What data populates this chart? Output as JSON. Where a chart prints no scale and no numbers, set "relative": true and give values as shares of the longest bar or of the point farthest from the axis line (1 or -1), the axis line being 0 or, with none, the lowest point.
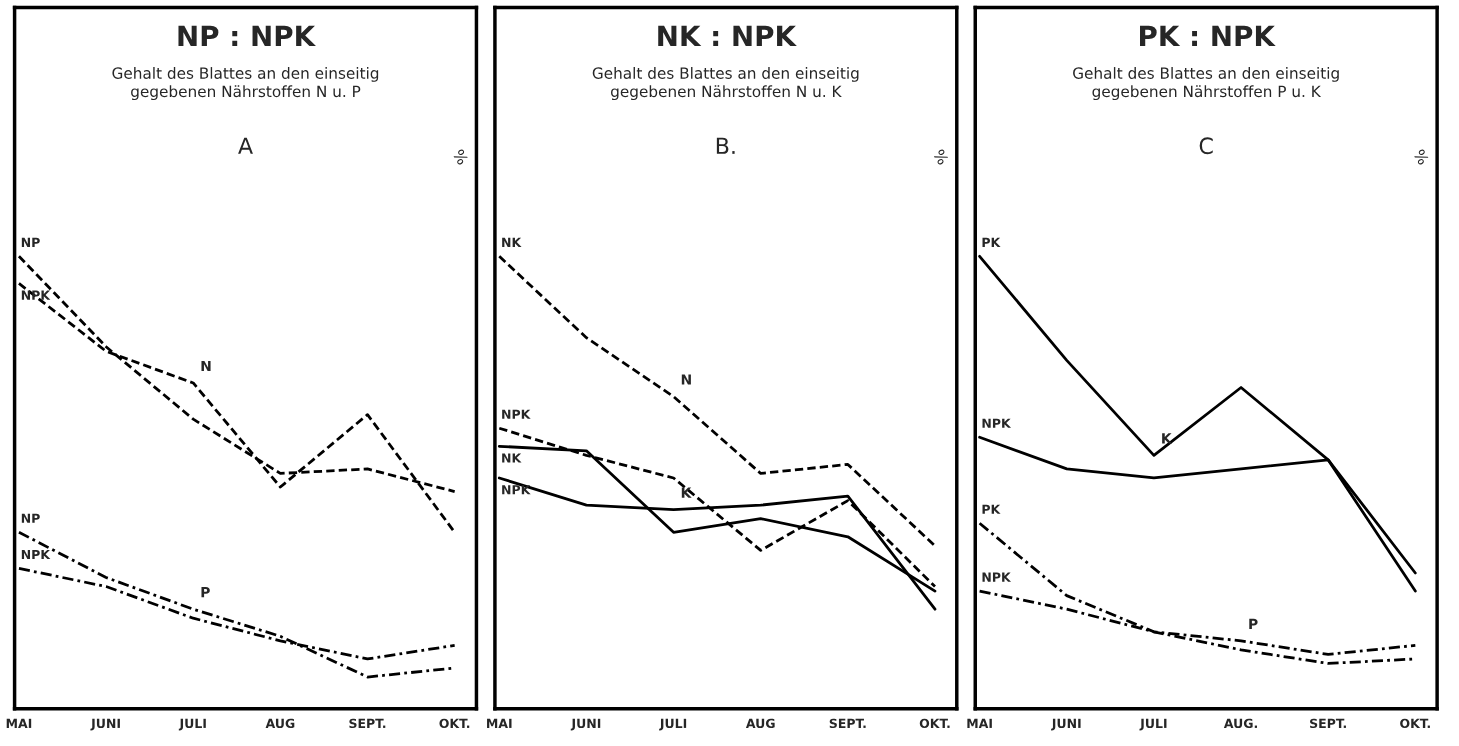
{
  "chart_data": [
    {
      "type": "line",
      "title": "NP : NPK",
      "subtitle": "Gehalt des Blattes an den einseitig gegebenen Nährstoffen N u. P",
      "ylabel": "%",
      "relative": true,
      "legend": false,
      "grid": false,
      "categories": [
        "MAI",
        "JUNI",
        "JULI",
        "AUG",
        "SEPT.",
        "OKT."
      ],
      "annotations": [
        "A",
        {
          "text": "N",
          "x": "JULI",
          "y": 0.72
        },
        {
          "text": "P",
          "x": "JULI",
          "y": 0.22
        }
      ],
      "series": [
        {
          "name": "NP",
          "color": "#000000",
          "line_style": "dashed",
          "values": [
            1.0,
            0.8,
            0.64,
            0.52,
            0.53,
            0.48
          ]
        },
        {
          "name": "NPK",
          "color": "#000000",
          "line_style": "dashed",
          "values": [
            0.94,
            0.79,
            0.72,
            0.49,
            0.65,
            0.39
          ]
        },
        {
          "name": "NP",
          "color": "#000000",
          "line_style": "dashdot",
          "values": [
            0.39,
            0.29,
            0.22,
            0.16,
            0.07,
            0.09
          ]
        },
        {
          "name": "NPK",
          "color": "#000000",
          "line_style": "dashdot",
          "values": [
            0.31,
            0.27,
            0.2,
            0.15,
            0.11,
            0.14
          ]
        }
      ]
    },
    {
      "type": "line",
      "title": "NK : NPK",
      "subtitle": "Gehalt des Blattes an den einseitig gegebenen Nährstoffen N u. K",
      "ylabel": "%",
      "relative": true,
      "legend": false,
      "grid": false,
      "categories": [
        "MAI",
        "JUNI",
        "JULI",
        "AUG",
        "SEPT.",
        "OKT."
      ],
      "annotations": [
        "B.",
        {
          "text": "N",
          "x": "JULI",
          "y": 0.69
        },
        {
          "text": "K",
          "x": "JULI",
          "y": 0.44
        }
      ],
      "series": [
        {
          "name": "NK",
          "color": "#000000",
          "line_style": "dashed",
          "values": [
            1.0,
            0.82,
            0.69,
            0.52,
            0.54,
            0.36
          ]
        },
        {
          "name": "NPK",
          "color": "#000000",
          "line_style": "dashed",
          "values": [
            0.62,
            0.56,
            0.51,
            0.35,
            0.46,
            0.27
          ]
        },
        {
          "name": "NK",
          "color": "#000000",
          "line_style": "solid",
          "values": [
            0.58,
            0.57,
            0.39,
            0.42,
            0.38,
            0.26
          ]
        },
        {
          "name": "NPK",
          "color": "#000000",
          "line_style": "solid",
          "values": [
            0.51,
            0.45,
            0.44,
            0.45,
            0.47,
            0.22
          ]
        }
      ]
    },
    {
      "type": "line",
      "title": "PK : NPK",
      "subtitle": "Gehalt des Blattes an den einseitig gegebenen Nährstoffen P u. K",
      "ylabel": "%",
      "relative": true,
      "legend": false,
      "grid": false,
      "categories": [
        "MAI",
        "JUNI",
        "JULI",
        "AUG.",
        "SEPT.",
        "OKT."
      ],
      "annotations": [
        "C",
        {
          "text": "K",
          "x": "JULI",
          "y": 0.56
        },
        {
          "text": "P",
          "x": "AUG.",
          "y": 0.15
        }
      ],
      "series": [
        {
          "name": "PK",
          "color": "#000000",
          "line_style": "solid",
          "values": [
            1.0,
            0.77,
            0.56,
            0.71,
            0.55,
            0.3
          ]
        },
        {
          "name": "NPK",
          "color": "#000000",
          "line_style": "solid",
          "values": [
            0.6,
            0.53,
            0.51,
            0.53,
            0.55,
            0.26
          ]
        },
        {
          "name": "PK",
          "color": "#000000",
          "line_style": "dashdot",
          "values": [
            0.41,
            0.25,
            0.17,
            0.15,
            0.12,
            0.14
          ]
        },
        {
          "name": "NPK",
          "color": "#000000",
          "line_style": "dashdot",
          "values": [
            0.26,
            0.22,
            0.17,
            0.13,
            0.1,
            0.11
          ]
        }
      ]
    }
  ]
}
